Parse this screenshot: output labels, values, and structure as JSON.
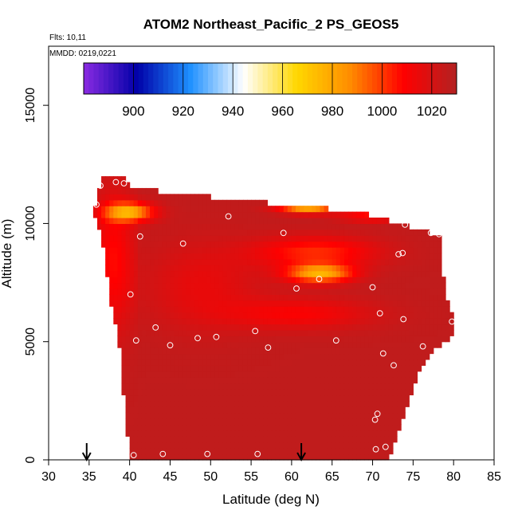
{
  "chart_data": {
    "type": "heatmap",
    "title": "ATOM2 Northeast_Pacific_2 PS_GEOS5",
    "flights_note": "Flts: 10,11",
    "dates_note": "MMDD: 0219,0221",
    "xlabel": "Latitude (deg N)",
    "ylabel": "Altitude (m)",
    "xlim": [
      30,
      85
    ],
    "ylim": [
      0,
      17500
    ],
    "x_ticks": [
      30,
      35,
      40,
      45,
      50,
      55,
      60,
      65,
      70,
      75,
      80,
      85
    ],
    "y_ticks": [
      0,
      5000,
      10000,
      15000
    ],
    "colorbar": {
      "min": 880,
      "max": 1030,
      "ticks": [
        900,
        920,
        940,
        960,
        980,
        1000,
        1020
      ],
      "colors": [
        "#8a2be2",
        "#0000a8",
        "#1e90ff",
        "#ffffff",
        "#ffd700",
        "#ff8c00",
        "#ff0000",
        "#b22222"
      ]
    },
    "arrows_x": [
      34.7,
      61.2
    ],
    "points": [
      [
        38.3,
        11750
      ],
      [
        39.3,
        11700
      ],
      [
        36.4,
        11600
      ],
      [
        35.9,
        10800
      ],
      [
        67.8,
        10650
      ],
      [
        52.2,
        10300
      ],
      [
        74.0,
        9950
      ],
      [
        59.0,
        9600
      ],
      [
        41.3,
        9450
      ],
      [
        77.2,
        9600
      ],
      [
        78.2,
        9550
      ],
      [
        46.6,
        9150
      ],
      [
        73.7,
        8750
      ],
      [
        73.2,
        8700
      ],
      [
        63.4,
        7650
      ],
      [
        60.6,
        7250
      ],
      [
        70.0,
        7300
      ],
      [
        40.1,
        7000
      ],
      [
        70.9,
        6200
      ],
      [
        73.8,
        5950
      ],
      [
        79.8,
        5850
      ],
      [
        43.2,
        5600
      ],
      [
        55.5,
        5450
      ],
      [
        50.7,
        5200
      ],
      [
        48.4,
        5150
      ],
      [
        40.8,
        5050
      ],
      [
        65.5,
        5050
      ],
      [
        45.0,
        4850
      ],
      [
        57.1,
        4750
      ],
      [
        76.2,
        4800
      ],
      [
        71.3,
        4500
      ],
      [
        72.6,
        4000
      ],
      [
        70.6,
        1950
      ],
      [
        70.3,
        1700
      ],
      [
        71.6,
        550
      ],
      [
        70.4,
        450
      ],
      [
        40.5,
        200
      ],
      [
        44.1,
        250
      ],
      [
        49.6,
        250
      ],
      [
        55.8,
        250
      ]
    ]
  }
}
